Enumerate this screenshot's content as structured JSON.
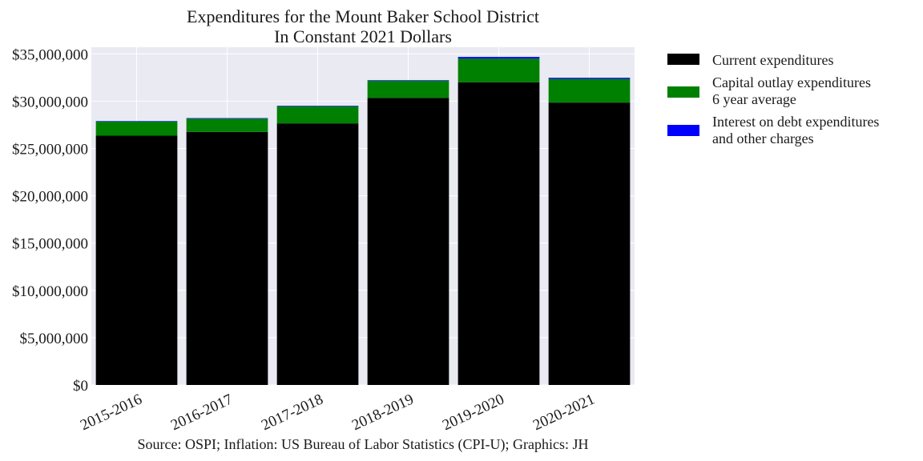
{
  "chart_data": {
    "type": "bar",
    "stacked": true,
    "title": [
      "Expenditures for the Mount Baker School District",
      "In Constant 2021 Dollars"
    ],
    "categories": [
      "2015-2016",
      "2016-2017",
      "2017-2018",
      "2018-2019",
      "2019-2020",
      "2020-2021"
    ],
    "series": [
      {
        "name": "Current expenditures",
        "color": "#000000",
        "values": [
          26350000,
          26750000,
          27650000,
          30350000,
          32000000,
          29850000
        ]
      },
      {
        "name": [
          "Capital outlay expenditures",
          "6 year average"
        ],
        "color": "#008000",
        "values": [
          1500000,
          1400000,
          1800000,
          1800000,
          2500000,
          2500000
        ]
      },
      {
        "name": [
          "Interest on debt expenditures",
          "and other charges"
        ],
        "color": "#0000ff",
        "values": [
          50000,
          60000,
          60000,
          60000,
          170000,
          120000
        ]
      }
    ],
    "y_ticks": [
      "$0",
      "$5,000,000",
      "$10,000,000",
      "$15,000,000",
      "$20,000,000",
      "$25,000,000",
      "$30,000,000",
      "$35,000,000"
    ],
    "y_tick_values": [
      0,
      5000000,
      10000000,
      15000000,
      20000000,
      25000000,
      30000000,
      35000000
    ],
    "ylim": [
      0,
      35700000
    ],
    "grid": true,
    "legend_position": "outside-right-top",
    "background_color": "#eaeaf2",
    "caption": "Source: OSPI; Inflation: US Bureau of Labor Statistics (CPI-U); Graphics: JH"
  }
}
